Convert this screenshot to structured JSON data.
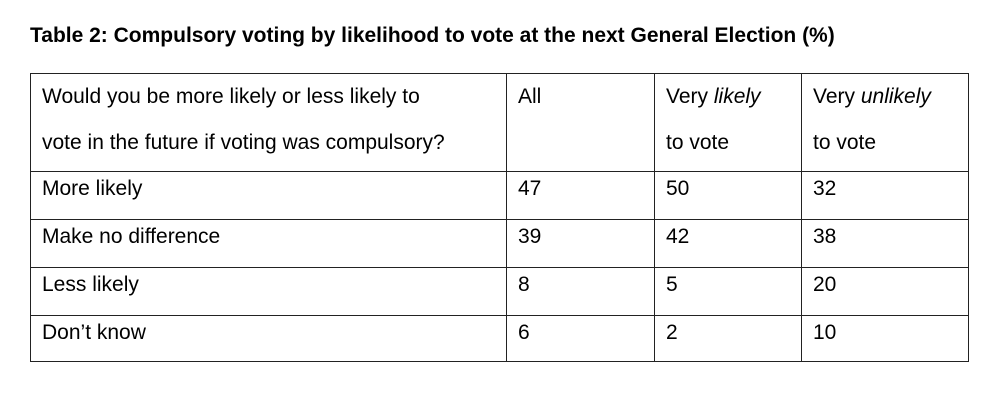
{
  "title": "Table 2: Compulsory voting by likelihood to vote at the next General Election (%)",
  "header": {
    "question_line1": "Would you be more likely or less likely to",
    "question_line2": "vote in the future if voting was compulsory?",
    "all": "All",
    "very_likely_prefix": "Very ",
    "very_likely_em": "likely",
    "very_likely_line2": "to vote",
    "very_unlikely_prefix": "Very ",
    "very_unlikely_em": "unlikely",
    "very_unlikely_line2": "to vote"
  },
  "rows": [
    {
      "label": "More likely",
      "all": "47",
      "very_likely": "50",
      "very_unlikely": "32"
    },
    {
      "label": "Make no difference",
      "all": "39",
      "very_likely": "42",
      "very_unlikely": "38"
    },
    {
      "label": "Less likely",
      "all": "8",
      "very_likely": "5",
      "very_unlikely": "20"
    },
    {
      "label": "Don’t know",
      "all": "6",
      "very_likely": "2",
      "very_unlikely": "10"
    }
  ]
}
